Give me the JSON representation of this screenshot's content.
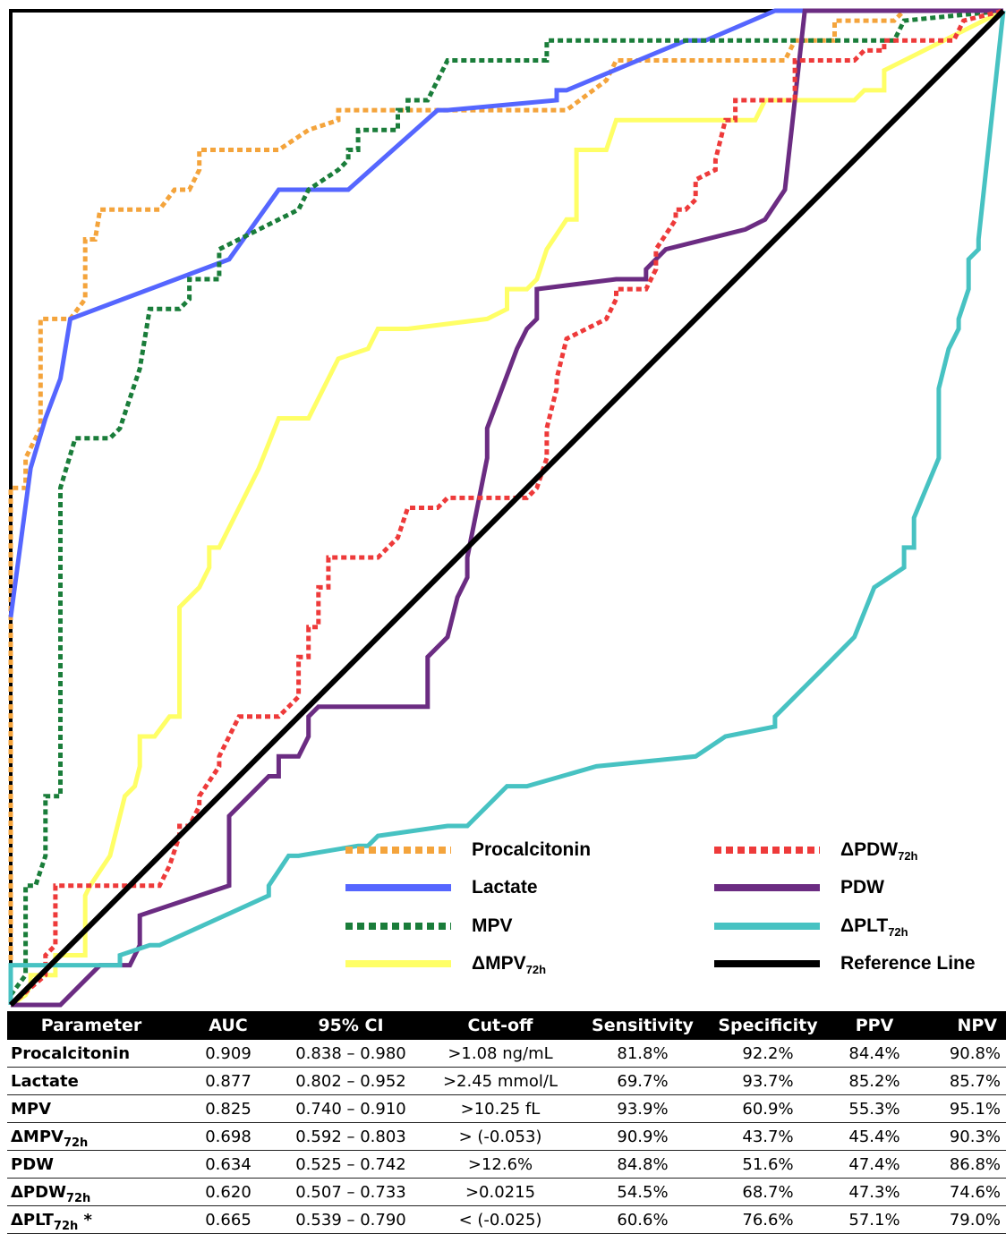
{
  "chart_data": {
    "type": "line",
    "xlim": [
      0,
      1
    ],
    "ylim": [
      0,
      1
    ],
    "grid": false,
    "legend_position": "bottom-right",
    "series": [
      {
        "name": "Procalcitonin",
        "key": "pct",
        "color": "#f4a43c",
        "style": "dotted",
        "x": [
          0,
          0,
          0.015,
          0.015,
          0.03,
          0.03,
          0.06,
          0.075,
          0.075,
          0.085,
          0.09,
          0.12,
          0.15,
          0.165,
          0.18,
          0.19,
          0.19,
          0.27,
          0.3,
          0.3,
          0.33,
          0.33,
          0.56,
          0.6,
          0.61,
          0.78,
          0.79,
          0.83,
          0.83,
          0.89,
          0.9,
          1
        ],
        "y": [
          0,
          0.52,
          0.52,
          0.55,
          0.58,
          0.69,
          0.69,
          0.71,
          0.77,
          0.77,
          0.8,
          0.8,
          0.8,
          0.82,
          0.82,
          0.84,
          0.86,
          0.86,
          0.88,
          0.88,
          0.89,
          0.9,
          0.9,
          0.93,
          0.95,
          0.95,
          0.97,
          0.97,
          0.99,
          0.99,
          1,
          1
        ]
      },
      {
        "name": "Lactate",
        "key": "lactate",
        "color": "#5566ff",
        "style": "solid",
        "x": [
          0,
          0.02,
          0.035,
          0.05,
          0.06,
          0.22,
          0.27,
          0.34,
          0.43,
          0.44,
          0.55,
          0.55,
          0.56,
          0.68,
          0.7,
          0.77,
          1
        ],
        "y": [
          0.39,
          0.54,
          0.59,
          0.63,
          0.69,
          0.75,
          0.82,
          0.82,
          0.9,
          0.9,
          0.91,
          0.92,
          0.92,
          0.97,
          0.97,
          1,
          1
        ]
      },
      {
        "name": "MPV",
        "key": "mpv",
        "color": "#1a7d3a",
        "style": "dotted",
        "x": [
          0,
          0.015,
          0.015,
          0.025,
          0.035,
          0.035,
          0.05,
          0.05,
          0.065,
          0.1,
          0.11,
          0.11,
          0.13,
          0.14,
          0.17,
          0.18,
          0.18,
          0.21,
          0.21,
          0.25,
          0.29,
          0.3,
          0.33,
          0.34,
          0.34,
          0.35,
          0.35,
          0.39,
          0.39,
          0.4,
          0.4,
          0.42,
          0.44,
          0.54,
          0.54,
          0.89,
          0.9,
          1
        ],
        "y": [
          0.01,
          0.03,
          0.12,
          0.12,
          0.15,
          0.21,
          0.21,
          0.52,
          0.57,
          0.57,
          0.58,
          0.58,
          0.64,
          0.7,
          0.7,
          0.71,
          0.73,
          0.73,
          0.76,
          0.78,
          0.8,
          0.82,
          0.84,
          0.85,
          0.86,
          0.86,
          0.88,
          0.88,
          0.9,
          0.9,
          0.91,
          0.91,
          0.95,
          0.95,
          0.97,
          0.97,
          0.99,
          1
        ]
      },
      {
        "name": "ΔMPV72h",
        "key": "dmpv",
        "color": "#ffff66",
        "style": "solid",
        "x": [
          0,
          0.015,
          0.02,
          0.02,
          0.045,
          0.045,
          0.075,
          0.075,
          0.08,
          0.1,
          0.115,
          0.125,
          0.13,
          0.13,
          0.145,
          0.16,
          0.17,
          0.17,
          0.19,
          0.2,
          0.2,
          0.21,
          0.25,
          0.27,
          0.3,
          0.33,
          0.36,
          0.37,
          0.4,
          0.48,
          0.5,
          0.5,
          0.52,
          0.53,
          0.53,
          0.54,
          0.56,
          0.57,
          0.57,
          0.6,
          0.61,
          0.75,
          0.76,
          0.85,
          0.86,
          0.88,
          0.88,
          1
        ],
        "y": [
          0,
          0.01,
          0.02,
          0.03,
          0.03,
          0.05,
          0.05,
          0.11,
          0.12,
          0.15,
          0.21,
          0.22,
          0.24,
          0.27,
          0.27,
          0.29,
          0.29,
          0.4,
          0.42,
          0.44,
          0.46,
          0.46,
          0.54,
          0.59,
          0.59,
          0.65,
          0.66,
          0.68,
          0.68,
          0.69,
          0.7,
          0.72,
          0.72,
          0.73,
          0.73,
          0.76,
          0.79,
          0.79,
          0.86,
          0.86,
          0.89,
          0.89,
          0.91,
          0.91,
          0.92,
          0.92,
          0.94,
          1
        ]
      },
      {
        "name": "PDW",
        "key": "pdw",
        "color": "#6b2c82",
        "style": "solid",
        "x": [
          0,
          0.05,
          0.07,
          0.08,
          0.09,
          0.12,
          0.13,
          0.13,
          0.22,
          0.22,
          0.26,
          0.27,
          0.27,
          0.29,
          0.3,
          0.3,
          0.31,
          0.42,
          0.42,
          0.44,
          0.45,
          0.46,
          0.46,
          0.48,
          0.48,
          0.51,
          0.52,
          0.53,
          0.53,
          0.61,
          0.64,
          0.64,
          0.66,
          0.74,
          0.76,
          0.78,
          0.8,
          1
        ],
        "y": [
          0,
          0,
          0.02,
          0.03,
          0.04,
          0.04,
          0.06,
          0.09,
          0.12,
          0.19,
          0.23,
          0.23,
          0.25,
          0.25,
          0.27,
          0.29,
          0.3,
          0.3,
          0.35,
          0.37,
          0.41,
          0.43,
          0.45,
          0.55,
          0.58,
          0.66,
          0.68,
          0.69,
          0.72,
          0.73,
          0.73,
          0.74,
          0.76,
          0.78,
          0.79,
          0.82,
          1,
          1
        ]
      },
      {
        "name": "ΔPDW72h",
        "key": "dpdw",
        "color": "#ee3a3a",
        "style": "dotted",
        "x": [
          0,
          0.035,
          0.035,
          0.045,
          0.045,
          0.12,
          0.13,
          0.15,
          0.16,
          0.17,
          0.17,
          0.18,
          0.19,
          0.19,
          0.21,
          0.21,
          0.23,
          0.25,
          0.27,
          0.29,
          0.29,
          0.3,
          0.3,
          0.31,
          0.31,
          0.32,
          0.32,
          0.34,
          0.37,
          0.39,
          0.4,
          0.43,
          0.44,
          0.5,
          0.52,
          0.53,
          0.54,
          0.54,
          0.55,
          0.55,
          0.56,
          0.6,
          0.61,
          0.61,
          0.64,
          0.65,
          0.65,
          0.67,
          0.67,
          0.68,
          0.69,
          0.69,
          0.71,
          0.71,
          0.72,
          0.73,
          0.73,
          0.79,
          0.79,
          0.85,
          0.86,
          0.88,
          0.88,
          0.95,
          0.96,
          1
        ],
        "y": [
          0,
          0.03,
          0.05,
          0.06,
          0.12,
          0.12,
          0.12,
          0.12,
          0.14,
          0.17,
          0.18,
          0.18,
          0.2,
          0.21,
          0.24,
          0.25,
          0.29,
          0.29,
          0.29,
          0.31,
          0.35,
          0.35,
          0.38,
          0.38,
          0.42,
          0.42,
          0.45,
          0.45,
          0.45,
          0.47,
          0.5,
          0.5,
          0.51,
          0.51,
          0.51,
          0.52,
          0.55,
          0.58,
          0.62,
          0.63,
          0.67,
          0.69,
          0.71,
          0.72,
          0.72,
          0.74,
          0.76,
          0.79,
          0.8,
          0.8,
          0.81,
          0.83,
          0.84,
          0.85,
          0.89,
          0.89,
          0.91,
          0.91,
          0.95,
          0.95,
          0.96,
          0.96,
          0.97,
          0.97,
          0.99,
          1
        ]
      },
      {
        "name": "ΔPLT72h",
        "key": "dplt",
        "color": "#47c2c2",
        "style": "solid",
        "x": [
          0,
          0,
          0.03,
          0.03,
          0.11,
          0.11,
          0.14,
          0.15,
          0.26,
          0.26,
          0.28,
          0.29,
          0.35,
          0.36,
          0.37,
          0.44,
          0.46,
          0.47,
          0.47,
          0.49,
          0.5,
          0.52,
          0.59,
          0.69,
          0.72,
          0.77,
          0.77,
          0.8,
          0.82,
          0.85,
          0.87,
          0.9,
          0.9,
          0.91,
          0.91,
          0.935,
          0.935,
          0.945,
          0.955,
          0.955,
          0.965,
          0.965,
          0.975,
          0.975,
          1
        ],
        "y": [
          0,
          0.04,
          0.04,
          0.04,
          0.04,
          0.05,
          0.06,
          0.06,
          0.11,
          0.12,
          0.15,
          0.15,
          0.16,
          0.16,
          0.17,
          0.18,
          0.18,
          0.19,
          0.19,
          0.21,
          0.22,
          0.22,
          0.24,
          0.25,
          0.27,
          0.28,
          0.29,
          0.32,
          0.34,
          0.37,
          0.42,
          0.44,
          0.46,
          0.46,
          0.49,
          0.55,
          0.62,
          0.66,
          0.68,
          0.69,
          0.72,
          0.75,
          0.76,
          0.77,
          1
        ]
      },
      {
        "name": "Reference Line",
        "key": "ref",
        "color": "#000000",
        "style": "solid",
        "x": [
          0,
          1
        ],
        "y": [
          0,
          1
        ]
      }
    ],
    "legend": [
      {
        "key": "pct",
        "label": "Procalcitonin",
        "sub": ""
      },
      {
        "key": "dpdw",
        "label": "ΔPDW",
        "sub": "72h"
      },
      {
        "key": "lactate",
        "label": "Lactate",
        "sub": ""
      },
      {
        "key": "pdw",
        "label": "PDW",
        "sub": ""
      },
      {
        "key": "mpv",
        "label": "MPV",
        "sub": ""
      },
      {
        "key": "dplt",
        "label": "ΔPLT",
        "sub": "72h"
      },
      {
        "key": "dmpv",
        "label": "ΔMPV",
        "sub": "72h"
      },
      {
        "key": "ref",
        "label": "Reference Line",
        "sub": ""
      }
    ]
  },
  "table": {
    "headers": [
      "Parameter",
      "AUC",
      "95% CI",
      "Cut-off",
      "Sensitivity",
      "Specificity",
      "PPV",
      "NPV"
    ],
    "rows": [
      {
        "param": "Procalcitonin",
        "sub": "",
        "note": "",
        "auc": "0.909",
        "ci": "0.838 – 0.980",
        "cutoff": ">1.08 ng/mL",
        "sens": "81.8%",
        "spec": "92.2%",
        "ppv": "84.4%",
        "npv": "90.8%"
      },
      {
        "param": "Lactate",
        "sub": "",
        "note": "",
        "auc": "0.877",
        "ci": "0.802 – 0.952",
        "cutoff": ">2.45 mmol/L",
        "sens": "69.7%",
        "spec": "93.7%",
        "ppv": "85.2%",
        "npv": "85.7%"
      },
      {
        "param": "MPV",
        "sub": "",
        "note": "",
        "auc": "0.825",
        "ci": "0.740 – 0.910",
        "cutoff": ">10.25 fL",
        "sens": "93.9%",
        "spec": "60.9%",
        "ppv": "55.3%",
        "npv": "95.1%"
      },
      {
        "param": "ΔMPV",
        "sub": "72h",
        "note": "",
        "auc": "0.698",
        "ci": "0.592 – 0.803",
        "cutoff": "> (-0.053)",
        "sens": "90.9%",
        "spec": "43.7%",
        "ppv": "45.4%",
        "npv": "90.3%"
      },
      {
        "param": "PDW",
        "sub": "",
        "note": "",
        "auc": "0.634",
        "ci": "0.525 – 0.742",
        "cutoff": ">12.6%",
        "sens": "84.8%",
        "spec": "51.6%",
        "ppv": "47.4%",
        "npv": "86.8%"
      },
      {
        "param": "ΔPDW",
        "sub": "72h",
        "note": "",
        "auc": "0.620",
        "ci": "0.507 – 0.733",
        "cutoff": ">0.0215",
        "sens": "54.5%",
        "spec": "68.7%",
        "ppv": "47.3%",
        "npv": "74.6%"
      },
      {
        "param": "ΔPLT",
        "sub": "72h",
        "note": "*",
        "auc": "0.665",
        "ci": "0.539 – 0.790",
        "cutoff": "< (-0.025)",
        "sens": "60.6%",
        "spec": "76.6%",
        "ppv": "57.1%",
        "npv": "79.0%"
      }
    ]
  }
}
